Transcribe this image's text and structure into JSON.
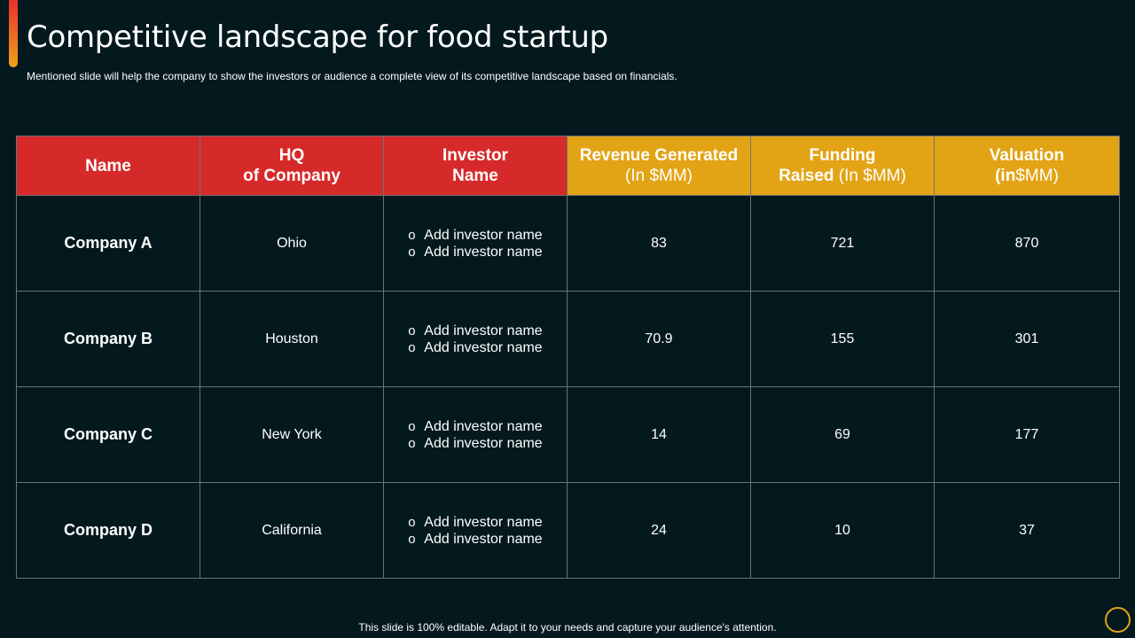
{
  "slide": {
    "title": "Competitive landscape for food startup",
    "subtitle": "Mentioned slide will help the company to show the investors or audience a complete view of its competitive landscape based on financials.",
    "footer": "This slide is 100% editable. Adapt it to your needs and capture your audience's attention."
  },
  "table": {
    "headers": {
      "name": "Name",
      "hq_line1": "HQ",
      "hq_line2": "of Company",
      "investor_line1": "Investor",
      "investor_line2": "Name",
      "revenue_bold": "Revenue Generated",
      "revenue_unit": "(In $MM)",
      "funding_line1": "Funding",
      "funding_bold": "Raised",
      "funding_unit": "(In $MM)",
      "valuation_line1": "Valuation",
      "valuation_bold": "(in",
      "valuation_unit": "$MM)"
    },
    "rows": [
      {
        "name": "Company A",
        "hq": "Ohio",
        "investors": [
          "Add investor name",
          "Add investor name"
        ],
        "revenue": "83",
        "funding": "721",
        "valuation": "870"
      },
      {
        "name": "Company B",
        "hq": "Houston",
        "investors": [
          "Add investor name",
          "Add investor name"
        ],
        "revenue": "70.9",
        "funding": "155",
        "valuation": "301"
      },
      {
        "name": "Company C",
        "hq": "New York",
        "investors": [
          "Add investor name",
          "Add investor name"
        ],
        "revenue": "14",
        "funding": "69",
        "valuation": "177"
      },
      {
        "name": "Company D",
        "hq": "California",
        "investors": [
          "Add investor name",
          "Add investor name"
        ],
        "revenue": "24",
        "funding": "10",
        "valuation": "37"
      }
    ],
    "bullet_glyph": "o"
  },
  "colors": {
    "background": "#04191e",
    "header_red": "#d62a2a",
    "header_gold": "#e2a415"
  }
}
